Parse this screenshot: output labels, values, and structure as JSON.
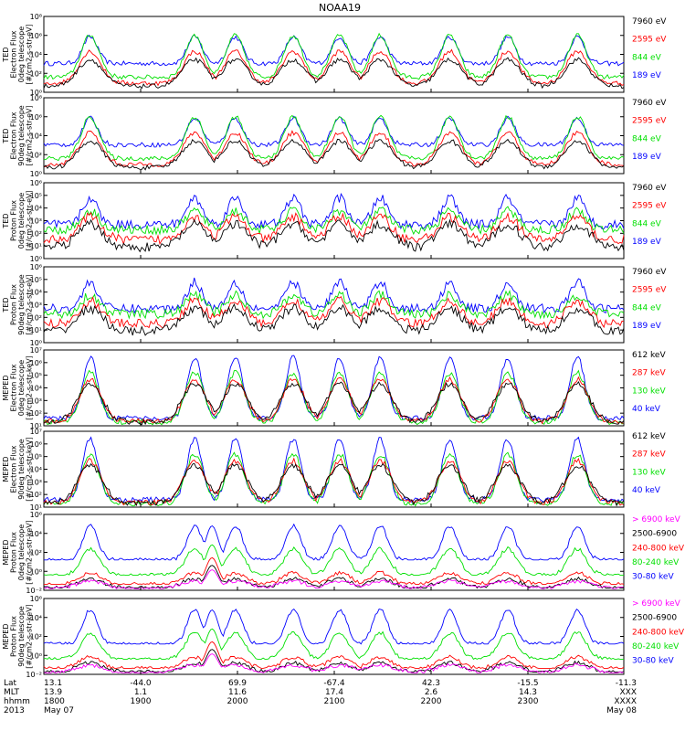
{
  "title": "NOAA19",
  "colors": {
    "black": "#000000",
    "red": "#ff0000",
    "green": "#00e000",
    "blue": "#0000ff",
    "magenta": "#ff00ff"
  },
  "chart_data": [
    {
      "type": "line",
      "ylabel_lines": [
        "TED",
        "Electron Flux",
        "0deg telescope",
        "[#/cm2-s-str-eV]"
      ],
      "yscale": "log",
      "ytick_labels": [
        "10⁰",
        "10²",
        "10⁴",
        "10⁶",
        "10⁸"
      ],
      "ylim": [
        1,
        100000000
      ],
      "series": [
        {
          "name": "7960 eV",
          "color": "#000000"
        },
        {
          "name": "2595 eV",
          "color": "#ff0000"
        },
        {
          "name": "844 eV",
          "color": "#00e000"
        },
        {
          "name": "189 eV",
          "color": "#0000ff"
        }
      ]
    },
    {
      "type": "line",
      "ylabel_lines": [
        "TED",
        "Electron Flux",
        "90deg telescope",
        "[#/cm2-s-str-eV]"
      ],
      "yscale": "log",
      "ytick_labels": [
        "10⁰",
        "10²",
        "10⁴",
        "10⁶",
        "10⁸"
      ],
      "ylim": [
        1,
        100000000
      ],
      "series": [
        {
          "name": "7960 eV",
          "color": "#000000"
        },
        {
          "name": "2595 eV",
          "color": "#ff0000"
        },
        {
          "name": "844 eV",
          "color": "#00e000"
        },
        {
          "name": "189 eV",
          "color": "#0000ff"
        }
      ]
    },
    {
      "type": "line",
      "ylabel_lines": [
        "TED",
        "Proton Flux",
        "0deg telescope",
        "[#/cm2-s-str-eV]"
      ],
      "yscale": "log",
      "ytick_labels": [
        "10⁰",
        "10¹",
        "10²",
        "10³",
        "10⁴",
        "10⁵",
        "10⁶"
      ],
      "ylim": [
        1,
        1000000
      ],
      "series": [
        {
          "name": "7960 eV",
          "color": "#000000"
        },
        {
          "name": "2595 eV",
          "color": "#ff0000"
        },
        {
          "name": "844 eV",
          "color": "#00e000"
        },
        {
          "name": "189 eV",
          "color": "#0000ff"
        }
      ]
    },
    {
      "type": "line",
      "ylabel_lines": [
        "TED",
        "Proton Flux",
        "90deg telescope",
        "[#/cm2-s-str-eV]"
      ],
      "yscale": "log",
      "ytick_labels": [
        "10⁰",
        "10¹",
        "10²",
        "10³",
        "10⁴",
        "10⁵",
        "10⁶"
      ],
      "ylim": [
        1,
        1000000
      ],
      "series": [
        {
          "name": "7960 eV",
          "color": "#000000"
        },
        {
          "name": "2595 eV",
          "color": "#ff0000"
        },
        {
          "name": "844 eV",
          "color": "#00e000"
        },
        {
          "name": "189 eV",
          "color": "#0000ff"
        }
      ]
    },
    {
      "type": "line",
      "ylabel_lines": [
        "MEPED",
        "Electron Flux",
        "0deg telescope",
        "[#/cm2-s-str-keV]"
      ],
      "yscale": "log",
      "ytick_labels": [
        "10¹",
        "10²",
        "10³",
        "10⁴",
        "10⁵",
        "10⁶",
        "10⁷"
      ],
      "ylim": [
        10,
        10000000
      ],
      "series": [
        {
          "name": "612 keV",
          "color": "#000000"
        },
        {
          "name": "287 keV",
          "color": "#ff0000"
        },
        {
          "name": "130 keV",
          "color": "#00e000"
        },
        {
          "name": "40 keV",
          "color": "#0000ff"
        }
      ]
    },
    {
      "type": "line",
      "ylabel_lines": [
        "MEPED",
        "Electron Flux",
        "90deg telescope",
        "[#/cm2-s-str-keV]"
      ],
      "yscale": "log",
      "ytick_labels": [
        "10¹",
        "10²",
        "10³",
        "10⁴",
        "10⁵",
        "10⁶",
        "10⁷"
      ],
      "ylim": [
        10,
        10000000
      ],
      "series": [
        {
          "name": "612 keV",
          "color": "#000000"
        },
        {
          "name": "287 keV",
          "color": "#ff0000"
        },
        {
          "name": "130 keV",
          "color": "#00e000"
        },
        {
          "name": "40 keV",
          "color": "#0000ff"
        }
      ]
    },
    {
      "type": "line",
      "ylabel_lines": [
        "MEPED",
        "Proton Flux",
        "0deg telescope",
        "[#/cm2-s-str-keV]"
      ],
      "yscale": "log",
      "ytick_labels": [
        "10⁻²",
        "10⁰",
        "10²",
        "10⁴",
        "10⁶"
      ],
      "ylim": [
        0.01,
        1000000
      ],
      "series": [
        {
          "name": "> 6900 keV",
          "color": "#ff00ff"
        },
        {
          "name": "2500-6900",
          "color": "#000000"
        },
        {
          "name": "240-800 keV",
          "color": "#ff0000"
        },
        {
          "name": "80-240 keV",
          "color": "#00e000"
        },
        {
          "name": "30-80 keV",
          "color": "#0000ff"
        }
      ]
    },
    {
      "type": "line",
      "ylabel_lines": [
        "MEPED",
        "Proton Flux",
        "90deg telescope",
        "[#/cm2-s-str-keV]"
      ],
      "yscale": "log",
      "ytick_labels": [
        "10⁻²",
        "10⁰",
        "10²",
        "10⁴",
        "10⁶"
      ],
      "ylim": [
        0.01,
        1000000
      ],
      "series": [
        {
          "name": "> 6900 keV",
          "color": "#ff00ff"
        },
        {
          "name": "2500-6900",
          "color": "#000000"
        },
        {
          "name": "240-800 keV",
          "color": "#ff0000"
        },
        {
          "name": "80-240 keV",
          "color": "#00e000"
        },
        {
          "name": "30-80 keV",
          "color": "#0000ff"
        }
      ]
    }
  ],
  "x_axis": {
    "row_labels": [
      "Lat",
      "MLT",
      "hhmm",
      "2013"
    ],
    "ticks": [
      {
        "lat": "13.1",
        "mlt": "13.9",
        "hhmm": "1800",
        "date": "May 07"
      },
      {
        "lat": "-44.0",
        "mlt": "1.1",
        "hhmm": "1900",
        "date": ""
      },
      {
        "lat": "69.9",
        "mlt": "11.6",
        "hhmm": "2000",
        "date": ""
      },
      {
        "lat": "-67.4",
        "mlt": "17.4",
        "hhmm": "2100",
        "date": ""
      },
      {
        "lat": "42.3",
        "mlt": "2.6",
        "hhmm": "2200",
        "date": ""
      },
      {
        "lat": "-15.5",
        "mlt": "14.3",
        "hhmm": "2300",
        "date": ""
      },
      {
        "lat": "-11.3",
        "mlt": "XXX",
        "hhmm": "XXXX",
        "date": "May 08"
      }
    ]
  }
}
